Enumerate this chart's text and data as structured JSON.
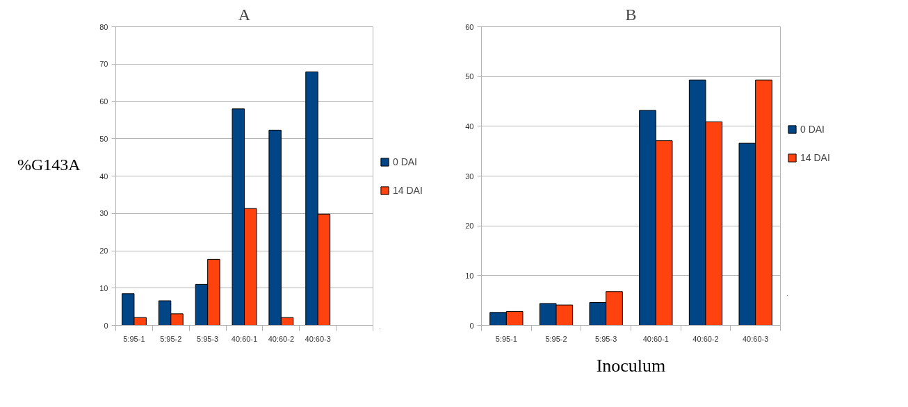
{
  "chart_data": [
    {
      "type": "bar",
      "title": "A",
      "ylabel": "%G143A",
      "categories": [
        "5:95-1",
        "5:95-2",
        "5:95-3",
        "40:60-1",
        "40:60-2",
        "40:60-3",
        null
      ],
      "series": [
        {
          "name": "0 DAI",
          "color": "#004586",
          "values": [
            8.5,
            6.6,
            11.0,
            58.0,
            52.3,
            67.9,
            null
          ]
        },
        {
          "name": "14 DAI",
          "color": "#ff420e",
          "values": [
            2.1,
            3.1,
            17.7,
            31.3,
            2.1,
            29.8,
            null
          ]
        }
      ],
      "ylim": [
        0,
        80
      ],
      "yticks": [
        0,
        10,
        20,
        30,
        40,
        50,
        60,
        70,
        80
      ],
      "grid": "y",
      "legend": "right"
    },
    {
      "type": "bar",
      "title": "B",
      "xlabel": "Inoculum",
      "categories": [
        "5:95-1",
        "5:95-2",
        "5:95-3",
        "40:60-1",
        "40:60-2",
        "40:60-3"
      ],
      "series": [
        {
          "name": "0 DAI",
          "color": "#004586",
          "values": [
            2.6,
            4.4,
            4.6,
            43.2,
            49.3,
            36.6
          ]
        },
        {
          "name": "14 DAI",
          "color": "#ff420e",
          "values": [
            2.8,
            4.1,
            6.8,
            37.1,
            40.9,
            49.3
          ]
        }
      ],
      "ylim": [
        0,
        60
      ],
      "yticks": [
        0,
        10,
        20,
        30,
        40,
        50,
        60
      ],
      "grid": "y",
      "legend": "right"
    }
  ]
}
